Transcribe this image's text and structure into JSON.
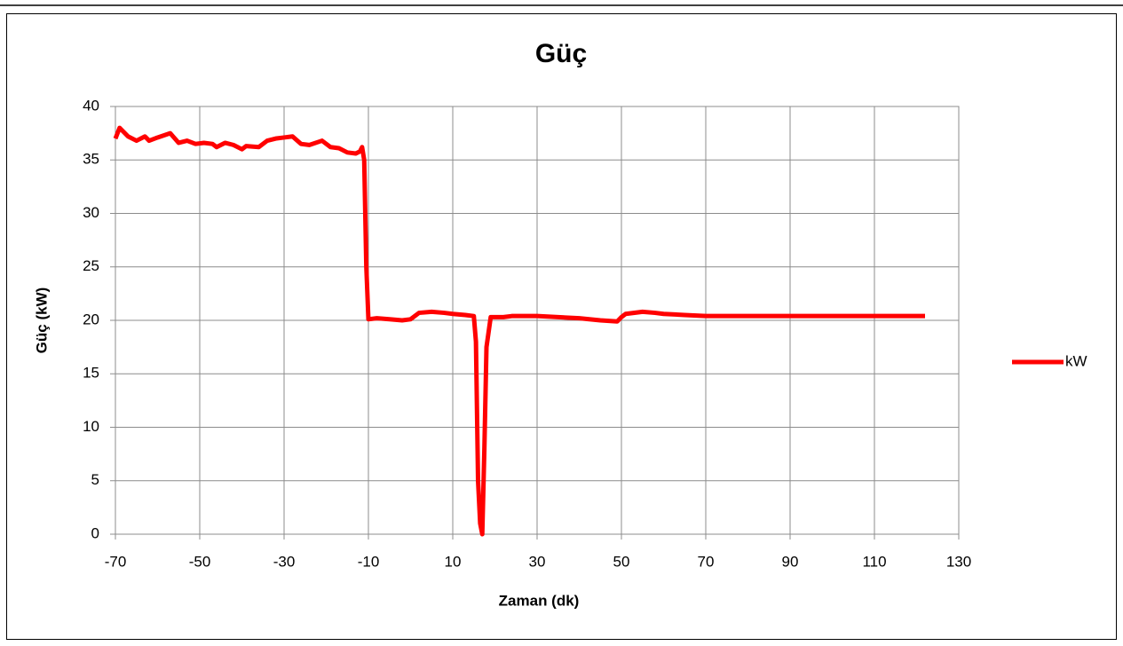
{
  "chart_data": {
    "type": "line",
    "title": "Güç",
    "xlabel": "Zaman (dk)",
    "ylabel": "Güç (kW)",
    "xlim": [
      -70,
      130
    ],
    "xticks": [
      -70,
      -50,
      -30,
      -10,
      10,
      30,
      50,
      70,
      90,
      110,
      130
    ],
    "ylim": [
      0,
      40
    ],
    "yticks": [
      0,
      5,
      10,
      15,
      20,
      25,
      30,
      35,
      40
    ],
    "grid": true,
    "legend": "right",
    "x": [
      -70,
      -69,
      -67,
      -65,
      -63,
      -62,
      -60,
      -57,
      -55,
      -53,
      -51,
      -49,
      -47,
      -46,
      -44,
      -42,
      -40,
      -39,
      -36,
      -34,
      -32,
      -30,
      -28,
      -26,
      -24,
      -21,
      -19,
      -17,
      -15,
      -13,
      -12,
      -11.5,
      -11,
      -10.5,
      -10,
      -8,
      -5,
      -2,
      0,
      2,
      5,
      8,
      10,
      13,
      15,
      15.5,
      16,
      16.5,
      17,
      17.5,
      18,
      19,
      22,
      24,
      30,
      35,
      40,
      45,
      49,
      50,
      51,
      55,
      58,
      60,
      65,
      70,
      80,
      90,
      100,
      110,
      115,
      122
    ],
    "series": [
      {
        "name": "kW",
        "color": "#ff0000",
        "values": [
          37,
          38,
          37.2,
          36.8,
          37.2,
          36.8,
          37.1,
          37.5,
          36.6,
          36.8,
          36.5,
          36.6,
          36.5,
          36.2,
          36.6,
          36.4,
          36.0,
          36.3,
          36.2,
          36.8,
          37.0,
          37.1,
          37.2,
          36.5,
          36.4,
          36.8,
          36.2,
          36.1,
          35.7,
          35.6,
          35.8,
          36.2,
          35,
          25,
          20.1,
          20.2,
          20.1,
          20.0,
          20.1,
          20.7,
          20.8,
          20.7,
          20.6,
          20.5,
          20.4,
          18,
          5,
          1,
          0,
          8,
          17.5,
          20.3,
          20.3,
          20.4,
          20.4,
          20.3,
          20.2,
          20.0,
          19.9,
          20.3,
          20.6,
          20.8,
          20.7,
          20.6,
          20.5,
          20.4,
          20.4,
          20.4,
          20.4,
          20.4,
          20.4,
          20.4
        ]
      }
    ]
  }
}
